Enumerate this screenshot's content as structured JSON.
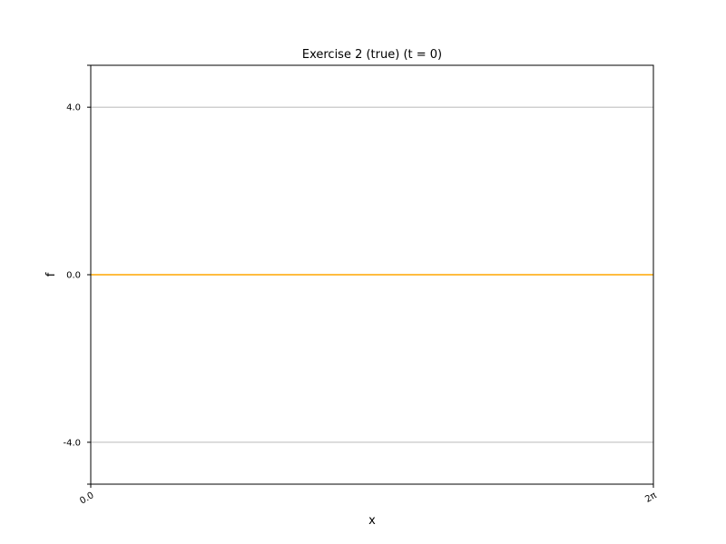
{
  "chart_data": {
    "type": "line",
    "title": "Exercise 2 (true) (t = 0)",
    "xlabel": "x",
    "ylabel": "f",
    "xlim": [
      0,
      6.283185307179586
    ],
    "ylim": [
      -5,
      5
    ],
    "x_ticks": [
      {
        "value": 0,
        "label": "0.0"
      },
      {
        "value": 6.283185307179586,
        "label": "2π"
      }
    ],
    "y_ticks": [
      {
        "value": -4,
        "label": "-4.0"
      },
      {
        "value": 0,
        "label": "0.0"
      },
      {
        "value": 4,
        "label": "4.0"
      }
    ],
    "grid": "horizontal",
    "series": [
      {
        "color": "#ffa500",
        "x": [
          0,
          6.283185307179586
        ],
        "y": [
          0,
          0
        ]
      }
    ]
  },
  "colors": {
    "line": "#ffa500",
    "grid": "#b0b0b0",
    "axes": "#000000"
  }
}
